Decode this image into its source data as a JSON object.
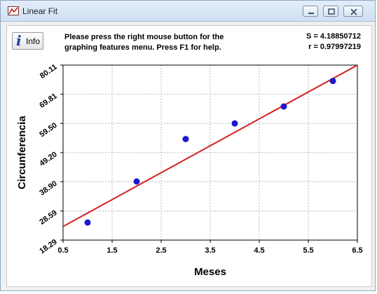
{
  "window": {
    "title": "Linear Fit",
    "icon": "app-icon",
    "controls": [
      "minimize-icon",
      "maximize-icon",
      "close-icon"
    ]
  },
  "toolbar": {
    "info_label": "Info",
    "hint_line1": "Please press the right mouse button for the",
    "hint_line2": "graphing features menu.  Press F1 for help."
  },
  "stats": {
    "s": "S = 4.18850712",
    "r": "r = 0.97997219"
  },
  "chart_data": {
    "type": "scatter",
    "xlabel": "Meses",
    "ylabel": "Circunferencia",
    "xlim": [
      0.5,
      6.5
    ],
    "ylim": [
      18.29,
      80.11
    ],
    "xticks": [
      "0.5",
      "1.5",
      "2.5",
      "3.5",
      "4.5",
      "5.5",
      "6.5"
    ],
    "yticks": [
      "18.29",
      "28.59",
      "38.90",
      "49.20",
      "59.50",
      "69.81",
      "80.11"
    ],
    "grid": true,
    "points": {
      "x": [
        1,
        2,
        3,
        4,
        5,
        6
      ],
      "y": [
        24.5,
        39.0,
        54.0,
        59.5,
        65.5,
        74.5
      ]
    },
    "fit_line": {
      "x": [
        0.5,
        6.5
      ],
      "y": [
        23.1,
        80.11
      ]
    },
    "colors": {
      "points": "#1a1acc",
      "fit_line": "#d42020",
      "grid": "#b8b8b8"
    }
  }
}
